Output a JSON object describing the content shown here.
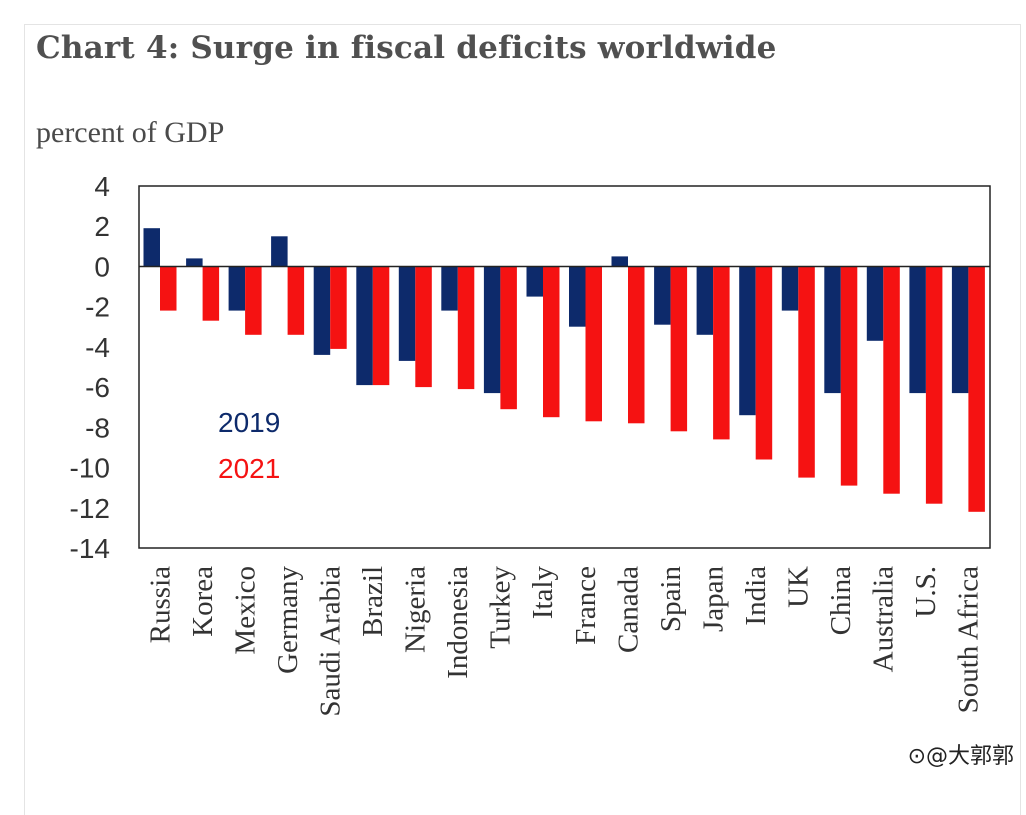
{
  "chart_data": {
    "type": "bar",
    "title": "Chart 4:  Surge in fiscal deficits worldwide",
    "ylabel": "percent of GDP",
    "categories": [
      "Russia",
      "Korea",
      "Mexico",
      "Germany",
      "Saudi Arabia",
      "Brazil",
      "Nigeria",
      "Indonesia",
      "Turkey",
      "Italy",
      "France",
      "Canada",
      "Spain",
      "Japan",
      "India",
      "UK",
      "China",
      "Australia",
      "U.S.",
      "South Africa"
    ],
    "series": [
      {
        "name": "2019",
        "color": "#0d2a6b",
        "values": [
          1.9,
          0.4,
          -2.2,
          1.5,
          -4.4,
          -5.9,
          -4.7,
          -2.2,
          -6.3,
          -1.5,
          -3.0,
          0.5,
          -2.9,
          -3.4,
          -7.4,
          -2.2,
          -6.3,
          -3.7,
          -6.3,
          -6.3
        ]
      },
      {
        "name": "2021",
        "color": "#f51212",
        "values": [
          -2.2,
          -2.7,
          -3.4,
          -3.4,
          -4.1,
          -5.9,
          -6.0,
          -6.1,
          -7.1,
          -7.5,
          -7.7,
          -7.8,
          -8.2,
          -8.6,
          -9.6,
          -10.5,
          -10.9,
          -11.3,
          -11.8,
          -12.2
        ]
      }
    ],
    "ylim": [
      -14,
      4
    ],
    "yticks": [
      4,
      2,
      0,
      -2,
      -4,
      -6,
      -8,
      -10,
      -12,
      -14
    ],
    "legend_position": "left, inside plot",
    "grid": false
  },
  "watermark": "⊙@大郭郭"
}
